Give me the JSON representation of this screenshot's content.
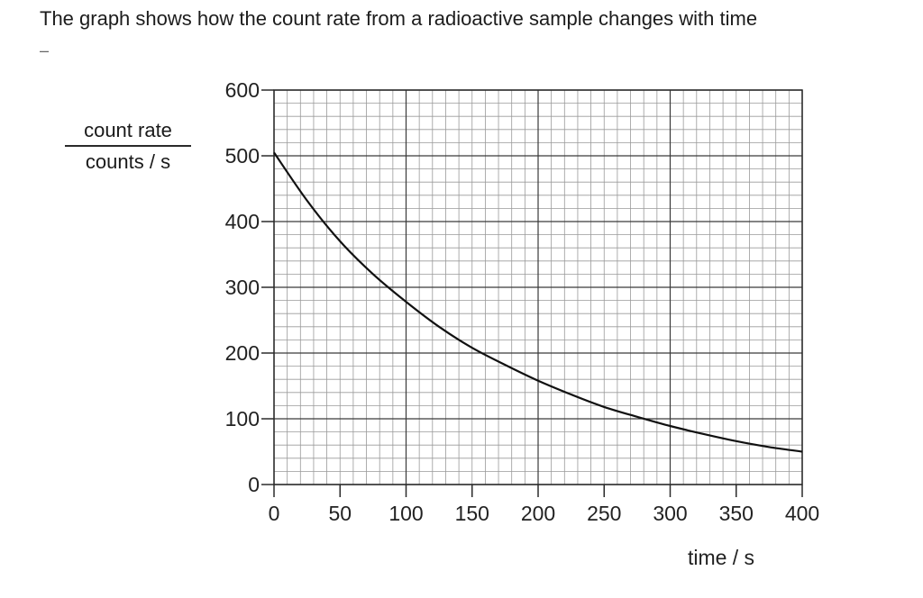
{
  "question": {
    "text": "The graph shows how the count rate from a radioactive sample changes with time",
    "separator": "–"
  },
  "chart_data": {
    "type": "line",
    "title": "",
    "ylabel_numerator": "count rate",
    "ylabel_denominator": "counts / s",
    "xlabel": "time / s",
    "xlim": [
      0,
      400
    ],
    "ylim": [
      0,
      600
    ],
    "x_ticks": [
      0,
      50,
      100,
      150,
      200,
      250,
      300,
      350,
      400
    ],
    "x_tick_labels": [
      "0",
      "50",
      "100",
      "150",
      "200",
      "250",
      "300",
      "350",
      "400"
    ],
    "y_ticks": [
      0,
      100,
      200,
      300,
      400,
      500,
      600
    ],
    "y_tick_labels": [
      "0",
      "100",
      "200",
      "300",
      "400",
      "500",
      "600"
    ],
    "grid": true,
    "series": [
      {
        "x": [
          0,
          25,
          50,
          75,
          100,
          125,
          150,
          175,
          200,
          225,
          250,
          275,
          300,
          325,
          350,
          375,
          400
        ],
        "y": [
          505,
          432,
          370,
          320,
          278,
          240,
          208,
          182,
          158,
          137,
          118,
          103,
          89,
          77,
          66,
          57,
          50
        ]
      }
    ]
  }
}
